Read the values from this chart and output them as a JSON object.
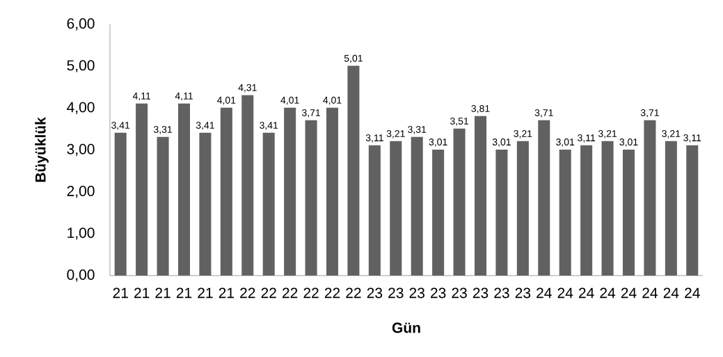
{
  "chart_data": {
    "type": "bar",
    "xlabel": "Gün",
    "ylabel": "Büyüklük",
    "categories": [
      "21",
      "21",
      "21",
      "21",
      "21",
      "21",
      "22",
      "22",
      "22",
      "22",
      "22",
      "22",
      "23",
      "23",
      "23",
      "23",
      "23",
      "23",
      "23",
      "23",
      "24",
      "24",
      "24",
      "24",
      "24",
      "24",
      "24",
      "24"
    ],
    "values": [
      3.41,
      4.11,
      3.31,
      4.11,
      3.41,
      4.01,
      4.31,
      3.41,
      4.01,
      3.71,
      4.01,
      5.01,
      3.11,
      3.21,
      3.31,
      3.01,
      3.51,
      3.81,
      3.01,
      3.21,
      3.71,
      3.01,
      3.11,
      3.21,
      3.01,
      3.71,
      3.21,
      3.11
    ],
    "value_labels": [
      "3,41",
      "4,11",
      "3,31",
      "4,11",
      "3,41",
      "4,01",
      "4,31",
      "3,41",
      "4,01",
      "3,71",
      "4,01",
      "5,01",
      "3,11",
      "3,21",
      "3,31",
      "3,01",
      "3,51",
      "3,81",
      "3,01",
      "3,21",
      "3,71",
      "3,01",
      "3,11",
      "3,21",
      "3,01",
      "3,71",
      "3,21",
      "3,11"
    ],
    "color": "#616161",
    "ylim": [
      0,
      6
    ],
    "yticks": [
      {
        "value": 0,
        "label": "0,00"
      },
      {
        "value": 1,
        "label": "1,00"
      },
      {
        "value": 2,
        "label": "2,00"
      },
      {
        "value": 3,
        "label": "3,00"
      },
      {
        "value": 4,
        "label": "4,00"
      },
      {
        "value": 5,
        "label": "5,00"
      },
      {
        "value": 6,
        "label": "6,00"
      }
    ]
  }
}
